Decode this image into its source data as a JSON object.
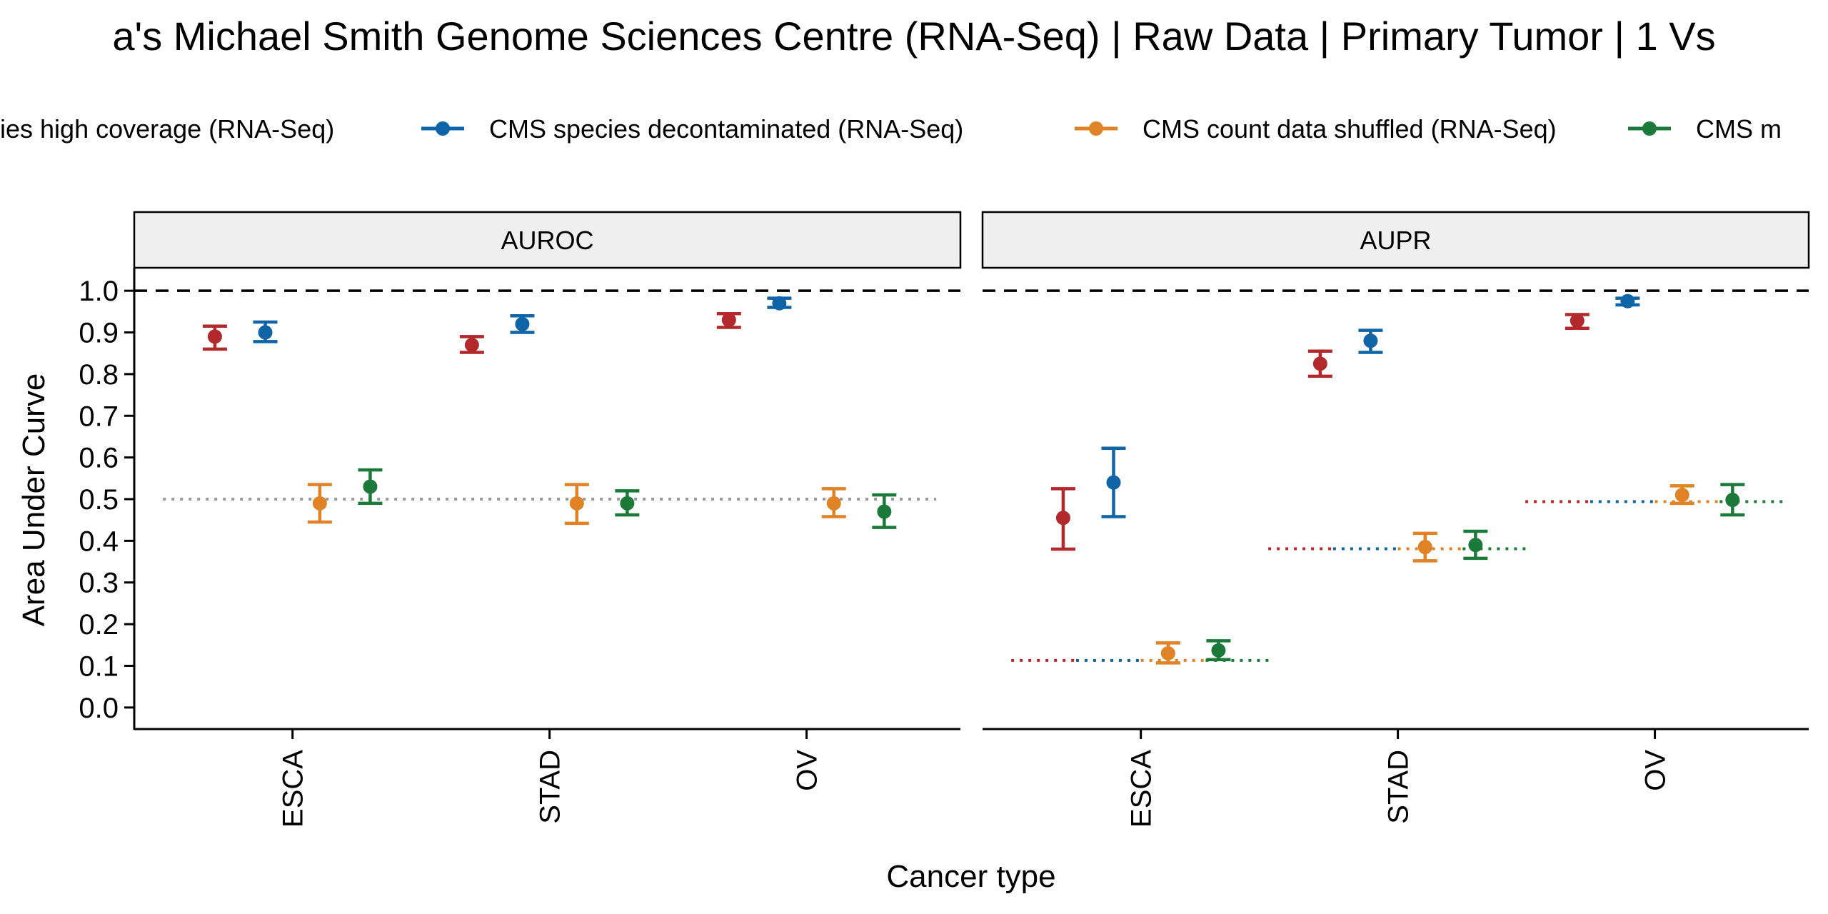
{
  "chart_data": {
    "type": "scatter",
    "title": "a's Michael Smith Genome Sciences Centre (RNA-Seq) | Raw Data | Primary Tumor | 1 Vs",
    "xlabel": "Cancer type",
    "ylabel": "Area Under Curve",
    "ylim": [
      -0.05,
      1.05
    ],
    "yticks": [
      "0.0",
      "0.1",
      "0.2",
      "0.3",
      "0.4",
      "0.5",
      "0.6",
      "0.7",
      "0.8",
      "0.9",
      "1.0"
    ],
    "categories": [
      "ESCA",
      "STAD",
      "OV"
    ],
    "reference_line": 1.0,
    "legend_position": "top",
    "grid": false,
    "series": [
      {
        "name": "ies high coverage (RNA-Seq)",
        "color": "#B2282B"
      },
      {
        "name": "CMS species decontaminated (RNA-Seq)",
        "color": "#0E64A6"
      },
      {
        "name": "CMS count data shuffled (RNA-Seq)",
        "color": "#E08226"
      },
      {
        "name": "CMS m",
        "color": "#1B7A3A"
      }
    ],
    "panels": [
      {
        "label": "AUROC",
        "baselines": [
          {
            "category": "ESCA",
            "value": 0.5
          },
          {
            "category": "STAD",
            "value": 0.5
          },
          {
            "category": "OV",
            "value": 0.5
          }
        ],
        "points": [
          {
            "category": "ESCA",
            "series": 0,
            "value": 0.89,
            "low": 0.86,
            "high": 0.915
          },
          {
            "category": "ESCA",
            "series": 1,
            "value": 0.9,
            "low": 0.878,
            "high": 0.925
          },
          {
            "category": "ESCA",
            "series": 2,
            "value": 0.49,
            "low": 0.445,
            "high": 0.535
          },
          {
            "category": "ESCA",
            "series": 3,
            "value": 0.53,
            "low": 0.49,
            "high": 0.57
          },
          {
            "category": "STAD",
            "series": 0,
            "value": 0.87,
            "low": 0.852,
            "high": 0.89
          },
          {
            "category": "STAD",
            "series": 1,
            "value": 0.92,
            "low": 0.9,
            "high": 0.94
          },
          {
            "category": "STAD",
            "series": 2,
            "value": 0.49,
            "low": 0.442,
            "high": 0.535
          },
          {
            "category": "STAD",
            "series": 3,
            "value": 0.49,
            "low": 0.462,
            "high": 0.52
          },
          {
            "category": "OV",
            "series": 0,
            "value": 0.93,
            "low": 0.912,
            "high": 0.945
          },
          {
            "category": "OV",
            "series": 1,
            "value": 0.97,
            "low": 0.96,
            "high": 0.982
          },
          {
            "category": "OV",
            "series": 2,
            "value": 0.49,
            "low": 0.458,
            "high": 0.525
          },
          {
            "category": "OV",
            "series": 3,
            "value": 0.47,
            "low": 0.432,
            "high": 0.51
          }
        ]
      },
      {
        "label": "AUPR",
        "baselines": [
          {
            "category": "ESCA",
            "value": 0.113
          },
          {
            "category": "STAD",
            "value": 0.381
          },
          {
            "category": "OV",
            "value": 0.494
          }
        ],
        "points": [
          {
            "category": "ESCA",
            "series": 0,
            "value": 0.455,
            "low": 0.38,
            "high": 0.525
          },
          {
            "category": "ESCA",
            "series": 1,
            "value": 0.54,
            "low": 0.458,
            "high": 0.622
          },
          {
            "category": "ESCA",
            "series": 2,
            "value": 0.13,
            "low": 0.107,
            "high": 0.155
          },
          {
            "category": "ESCA",
            "series": 3,
            "value": 0.137,
            "low": 0.115,
            "high": 0.16
          },
          {
            "category": "STAD",
            "series": 0,
            "value": 0.825,
            "low": 0.795,
            "high": 0.855
          },
          {
            "category": "STAD",
            "series": 1,
            "value": 0.88,
            "low": 0.852,
            "high": 0.905
          },
          {
            "category": "STAD",
            "series": 2,
            "value": 0.385,
            "low": 0.352,
            "high": 0.418
          },
          {
            "category": "STAD",
            "series": 3,
            "value": 0.39,
            "low": 0.358,
            "high": 0.423
          },
          {
            "category": "OV",
            "series": 0,
            "value": 0.928,
            "low": 0.91,
            "high": 0.943
          },
          {
            "category": "OV",
            "series": 1,
            "value": 0.975,
            "low": 0.966,
            "high": 0.982
          },
          {
            "category": "OV",
            "series": 2,
            "value": 0.51,
            "low": 0.49,
            "high": 0.532
          },
          {
            "category": "OV",
            "series": 3,
            "value": 0.498,
            "low": 0.462,
            "high": 0.535
          }
        ]
      }
    ]
  }
}
